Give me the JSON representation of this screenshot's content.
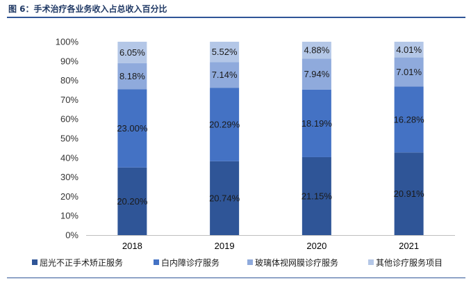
{
  "title": "图 6：手术治疗各业务收入占总收入百分比",
  "chart_data": {
    "type": "bar",
    "stacked": true,
    "categories": [
      "2018",
      "2019",
      "2020",
      "2021"
    ],
    "ylim": [
      0,
      100
    ],
    "yticks": [
      "0%",
      "10%",
      "20%",
      "30%",
      "40%",
      "50%",
      "60%",
      "70%",
      "80%",
      "90%",
      "100%"
    ],
    "legend_position": "bottom",
    "series": [
      {
        "name": "屈光不正手术矫正服务",
        "color": "#2f5597",
        "values": [
          34.96,
          38.2,
          40.3,
          42.72
        ],
        "labels": [
          "20.20%",
          "20.74%",
          "21.15%",
          "20.91%"
        ]
      },
      {
        "name": "白内障诊疗服务",
        "color": "#4472c4",
        "values": [
          40.4,
          38.0,
          34.9,
          34.16
        ],
        "labels": [
          "23.00%",
          "20.29%",
          "18.19%",
          "16.28%"
        ]
      },
      {
        "name": "玻璃体视网膜诊疗服务",
        "color": "#8faadc",
        "values": [
          13.6,
          13.3,
          16.0,
          15.0
        ],
        "labels": [
          "8.18%",
          "7.14%",
          "7.94%",
          "7.01%"
        ]
      },
      {
        "name": "其他诊疗服务项目",
        "color": "#b4c7e7",
        "values": [
          11.04,
          10.5,
          8.8,
          8.12
        ],
        "labels": [
          "6.05%",
          "5.52%",
          "4.88%",
          "4.01%"
        ]
      }
    ]
  }
}
